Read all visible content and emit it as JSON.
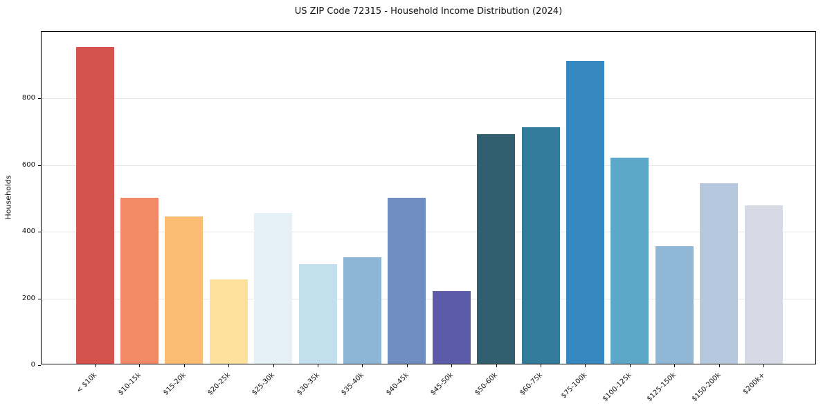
{
  "chart_data": {
    "type": "bar",
    "title": "US ZIP Code 72315 - Household Income Distribution (2024)",
    "xlabel": "",
    "ylabel": "Households",
    "categories": [
      "< $10k",
      "$10-15k",
      "$15-20k",
      "$20-25k",
      "$25-30k",
      "$30-35k",
      "$35-40k",
      "$40-45k",
      "$45-50k",
      "$50-60k",
      "$60-75k",
      "$75-100k",
      "$100-125k",
      "$125-150k",
      "$150-200k",
      "$200k+"
    ],
    "values": [
      950,
      497,
      441,
      254,
      452,
      299,
      320,
      497,
      218,
      688,
      710,
      908,
      618,
      353,
      542,
      475
    ],
    "bar_colors": [
      "#d4544d",
      "#f28a68",
      "#fbbd74",
      "#fce09c",
      "#e5f1f6",
      "#c2dfee",
      "#8cb5d6",
      "#6f8dc1",
      "#5b5baa",
      "#315f70",
      "#337b9b",
      "#3589c0",
      "#5da8c8",
      "#90b7d5",
      "#b6c8de",
      "#d7d9e5"
    ],
    "yticks": [
      0,
      200,
      400,
      600,
      800
    ],
    "ylim": [
      0,
      1000
    ],
    "grid": "horizontal",
    "gridline_color": "#e7e7e7",
    "legend": "none"
  }
}
